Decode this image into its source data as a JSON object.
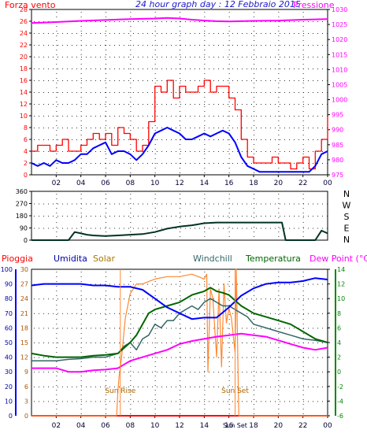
{
  "header": {
    "wind_title": "Forza vento",
    "main_title": "24 hour graph day : 12 Febbraio 2015",
    "pressure_title": "Pressione"
  },
  "bottom_header": {
    "rain": "Pioggia",
    "humidity": "Umidita",
    "solar": "Solar",
    "windchill": "Windchill",
    "temperature": "Temperatura",
    "dewpoint": "Dew Point (°C)"
  },
  "annotations": {
    "sunrise": "Sun Rise",
    "sunset": "Sun Set"
  },
  "colors": {
    "background": "#ffffff",
    "title_blue": "#1a1acc",
    "wind_red": "#ff0000",
    "wind_avg_blue": "#0000ff",
    "pressure_magenta": "#ff00ff",
    "direction_dark": "#003322",
    "humidity_blue": "#0000ff",
    "solar_orange": "#ff8833",
    "windchill_teal": "#336666",
    "temperature_green": "#006600",
    "dewpoint_magenta": "#ff00ff",
    "rain_red": "#ff0000",
    "humidity_axis": "#0000aa",
    "solar_axis": "#aa5500",
    "temp_axis": "#008800"
  },
  "chart_data": [
    {
      "id": "wind-pressure",
      "type": "line",
      "x_ticks": [
        "02",
        "04",
        "06",
        "08",
        "10",
        "12",
        "14",
        "16",
        "18",
        "20",
        "22",
        "00"
      ],
      "xlim": [
        0,
        24
      ],
      "y_left": {
        "label": "Forza vento",
        "ticks": [
          "0",
          "2",
          "4",
          "6",
          "8",
          "10",
          "12",
          "14",
          "16",
          "18",
          "20",
          "22",
          "24",
          "26",
          "28"
        ],
        "ylim": [
          0,
          28
        ]
      },
      "y_right": {
        "label": "Pressione",
        "ticks": [
          "975",
          "980",
          "985",
          "990",
          "995",
          "1000",
          "1005",
          "1010",
          "1015",
          "1020",
          "1025",
          "1030"
        ],
        "ylim": [
          975,
          1030
        ]
      },
      "series": [
        {
          "name": "gust",
          "axis": "left",
          "x": [
            0,
            0.5,
            1,
            1.5,
            2,
            2.5,
            3,
            3.5,
            4,
            4.5,
            5,
            5.5,
            6,
            6.5,
            7,
            7.5,
            8,
            8.5,
            9,
            9.5,
            10,
            10.5,
            11,
            11.5,
            12,
            12.5,
            13,
            13.5,
            14,
            14.5,
            15,
            15.5,
            16,
            16.5,
            17,
            17.5,
            18,
            18.5,
            19,
            19.5,
            20,
            20.5,
            21,
            21.5,
            22,
            22.5,
            23,
            23.5,
            24
          ],
          "values": [
            4,
            5,
            5,
            4,
            5,
            6,
            4,
            4,
            5,
            6,
            7,
            6,
            7,
            5,
            8,
            7,
            6,
            4,
            5,
            9,
            15,
            14,
            16,
            13,
            15,
            14,
            14,
            15,
            16,
            14,
            15,
            15,
            13,
            11,
            6,
            3,
            2,
            2,
            2,
            3,
            2,
            2,
            1,
            2,
            3,
            1,
            4,
            6,
            10
          ]
        },
        {
          "name": "average",
          "axis": "left",
          "x": [
            0,
            0.5,
            1,
            1.5,
            2,
            2.5,
            3,
            3.5,
            4,
            4.5,
            5,
            5.5,
            6,
            6.5,
            7,
            7.5,
            8,
            8.5,
            9,
            9.5,
            10,
            10.5,
            11,
            11.5,
            12,
            12.5,
            13,
            13.5,
            14,
            14.5,
            15,
            15.5,
            16,
            16.5,
            17,
            17.5,
            18,
            18.5,
            19,
            19.5,
            20,
            20.5,
            21,
            21.5,
            22,
            22.5,
            23,
            23.5,
            24
          ],
          "values": [
            2,
            1.5,
            2,
            1.5,
            2.5,
            2,
            2,
            2.5,
            3.5,
            3.5,
            4.5,
            5,
            5.5,
            3.5,
            4,
            4,
            3.5,
            2.5,
            3.5,
            5,
            7,
            7.5,
            8,
            7.5,
            7,
            6,
            6,
            6.5,
            7,
            6.5,
            7,
            7.5,
            7,
            5.5,
            3,
            1.5,
            1,
            0.5,
            0.5,
            0.5,
            0.5,
            0.5,
            0.5,
            0.5,
            0.5,
            0.5,
            1.5,
            3.5,
            4
          ]
        },
        {
          "name": "pressure",
          "axis": "right",
          "x": [
            0,
            2,
            4,
            6,
            8,
            10,
            11,
            12,
            13,
            14,
            15,
            16,
            17,
            18,
            20,
            22,
            24
          ],
          "values": [
            1025.5,
            1025.8,
            1026.2,
            1026.5,
            1026.8,
            1027.0,
            1027.2,
            1027.0,
            1026.6,
            1026.3,
            1026.1,
            1026.0,
            1026.1,
            1026.2,
            1026.3,
            1026.6,
            1026.8
          ]
        }
      ]
    },
    {
      "id": "wind-direction",
      "type": "line",
      "x_ticks": [
        "02",
        "04",
        "06",
        "08",
        "10",
        "12",
        "14",
        "16",
        "18",
        "20",
        "22",
        "00"
      ],
      "xlim": [
        0,
        24
      ],
      "y_left": {
        "ticks": [
          "0",
          "90",
          "180",
          "270",
          "360"
        ],
        "ylim": [
          0,
          360
        ]
      },
      "y_right": {
        "ticks": [
          "N",
          "W",
          "S",
          "E",
          "N"
        ]
      },
      "series": [
        {
          "name": "direction",
          "x": [
            0,
            1,
            2,
            3,
            3.5,
            4,
            4.5,
            5,
            6,
            7,
            8,
            9,
            10,
            11,
            12,
            13,
            14,
            15,
            16,
            17,
            18,
            19,
            20,
            20.3,
            20.6,
            21,
            22,
            23,
            23.5,
            24
          ],
          "values": [
            0,
            0,
            0,
            0,
            60,
            50,
            40,
            35,
            30,
            35,
            40,
            45,
            60,
            85,
            100,
            110,
            125,
            130,
            130,
            130,
            130,
            130,
            130,
            130,
            0,
            0,
            0,
            0,
            70,
            50
          ]
        }
      ]
    },
    {
      "id": "temperature-humidity-solar",
      "type": "line",
      "x_ticks": [
        "02",
        "04",
        "06",
        "08",
        "10",
        "12",
        "14",
        "16",
        "18",
        "20",
        "22",
        "00"
      ],
      "xlim": [
        0,
        24
      ],
      "y_humidity": {
        "ticks": [
          "0",
          "10",
          "20",
          "30",
          "40",
          "50",
          "60",
          "70",
          "80",
          "90",
          "100"
        ],
        "ylim": [
          0,
          100
        ]
      },
      "y_solar": {
        "ticks": [
          "0",
          "3",
          "6",
          "9",
          "12",
          "15",
          "18",
          "21",
          "24",
          "27",
          "30"
        ],
        "ylim": [
          0,
          30
        ]
      },
      "y_temp": {
        "ticks": [
          "-6",
          "-4",
          "-2",
          "0",
          "2",
          "4",
          "6",
          "8",
          "10",
          "12",
          "14"
        ],
        "ylim": [
          -6,
          14
        ]
      },
      "sunrise_x": 7.2,
      "sunset_x": 16.5,
      "series": [
        {
          "name": "Umidita",
          "axis": "humidity",
          "x": [
            0,
            1,
            2,
            3,
            4,
            5,
            6,
            7,
            8,
            9,
            10,
            11,
            12,
            13,
            14,
            15,
            16,
            17,
            18,
            19,
            20,
            21,
            22,
            23,
            24
          ],
          "values": [
            89,
            90,
            90,
            90,
            90,
            89,
            89,
            88,
            88,
            86,
            80,
            74,
            70,
            66,
            67,
            67,
            74,
            82,
            87,
            90,
            91,
            91,
            92,
            94,
            93
          ]
        },
        {
          "name": "Solar",
          "axis": "solar",
          "x": [
            0,
            6.9,
            7.0,
            7.1,
            7.3,
            7.6,
            8,
            8.5,
            9,
            10,
            11,
            12,
            13,
            14,
            14.2,
            14.3,
            14.5,
            14.7,
            15,
            15.2,
            15.4,
            15.6,
            15.8,
            16,
            16.2,
            16.5,
            16.6,
            16.8,
            17,
            24
          ],
          "values": [
            0,
            0,
            5,
            8,
            12,
            20,
            25,
            27,
            27,
            28,
            28.5,
            28.5,
            29,
            28,
            29,
            9,
            26,
            24,
            12,
            26,
            10,
            27,
            19,
            22,
            20,
            13,
            30,
            0,
            0,
            0
          ]
        },
        {
          "name": "Windchill",
          "axis": "temp",
          "x": [
            0,
            1,
            2,
            3,
            4,
            5,
            6,
            7,
            7.5,
            8,
            8.5,
            9,
            9.5,
            10,
            10.5,
            11,
            11.5,
            12,
            12.5,
            13,
            13.5,
            14,
            14.5,
            15,
            15.5,
            16,
            16.5,
            17,
            17.5,
            18,
            19,
            20,
            21,
            22,
            23,
            24
          ],
          "values": [
            1.5,
            1.5,
            1.5,
            1.7,
            1.8,
            2,
            2,
            2.5,
            3.5,
            4,
            3,
            4.5,
            5,
            6.5,
            6,
            7,
            7,
            8,
            8.5,
            9,
            8.5,
            9.5,
            10,
            9.5,
            9,
            9,
            8.5,
            8,
            7.5,
            6.5,
            6,
            5.5,
            5,
            4.5,
            4.3,
            4
          ]
        },
        {
          "name": "Temperatura",
          "axis": "temp",
          "x": [
            0,
            1,
            2,
            3,
            4,
            5,
            6,
            7,
            8,
            8.5,
            9,
            9.5,
            10,
            11,
            12,
            13,
            14,
            14.5,
            15,
            15.5,
            16,
            17,
            18,
            19,
            20,
            21,
            22,
            23,
            24
          ],
          "values": [
            2.5,
            2.2,
            2,
            2,
            2,
            2.2,
            2.3,
            2.5,
            4,
            5,
            6.5,
            8,
            8.5,
            9,
            9.5,
            10.5,
            11,
            11.5,
            11,
            10.8,
            10.5,
            9,
            8,
            7.5,
            7,
            6.5,
            5.5,
            4.5,
            4
          ]
        },
        {
          "name": "Dew Point",
          "axis": "temp",
          "x": [
            0,
            1,
            2,
            3,
            4,
            5,
            6,
            7,
            8,
            9,
            10,
            11,
            12,
            13,
            14,
            15,
            16,
            17,
            18,
            19,
            20,
            21,
            22,
            23,
            24
          ],
          "values": [
            0.5,
            0.5,
            0.5,
            0,
            0,
            0.2,
            0.3,
            0.5,
            1.5,
            2,
            2.5,
            3,
            3.8,
            4.2,
            4.5,
            4.8,
            5,
            5.2,
            5,
            4.8,
            4.3,
            3.8,
            3.3,
            3,
            3.3
          ]
        },
        {
          "name": "Pioggia",
          "axis": "humidity",
          "x": [
            0,
            24
          ],
          "values": [
            0,
            0
          ]
        }
      ]
    }
  ]
}
